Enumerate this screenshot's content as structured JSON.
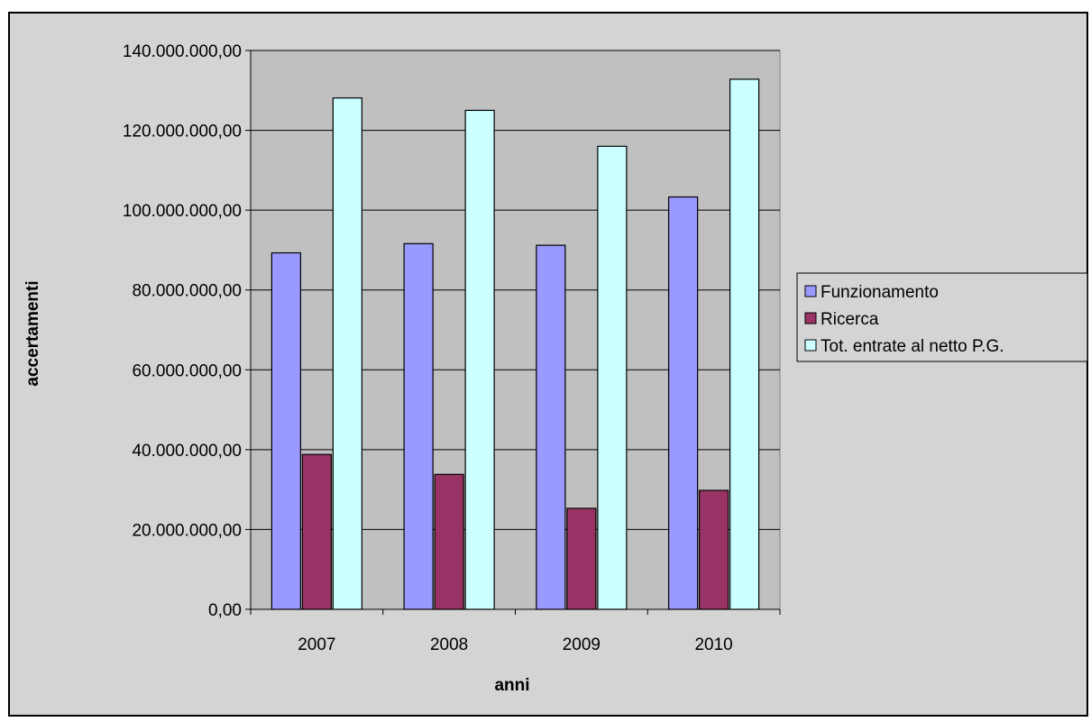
{
  "colors": {
    "chart_area": "#d4d4d4",
    "plot_area": "#c0c0c0",
    "funzionamento": "#9999ff",
    "ricerca": "#993366",
    "tot_entrate": "#ccffff",
    "grid": "#000000"
  },
  "chart_data": {
    "type": "bar",
    "title": "",
    "xlabel": "anni",
    "ylabel": "accertamenti",
    "ylim": [
      0,
      140000000
    ],
    "ytick_step": 20000000,
    "ytick_labels": [
      "0,00",
      "20.000.000,00",
      "40.000.000,00",
      "60.000.000,00",
      "80.000.000,00",
      "100.000.000,00",
      "120.000.000,00",
      "140.000.000,00"
    ],
    "grid": true,
    "legend_position": "right",
    "categories": [
      "2007",
      "2008",
      "2009",
      "2010"
    ],
    "series": [
      {
        "name": "Funzionamento",
        "color_key": "funzionamento",
        "values": [
          89300000,
          91600000,
          91200000,
          103300000
        ]
      },
      {
        "name": "Ricerca",
        "color_key": "ricerca",
        "values": [
          38800000,
          33800000,
          25300000,
          29800000
        ]
      },
      {
        "name": "Tot. entrate al netto P.G.",
        "color_key": "tot_entrate",
        "values": [
          128100000,
          125000000,
          116000000,
          132800000
        ]
      }
    ]
  }
}
